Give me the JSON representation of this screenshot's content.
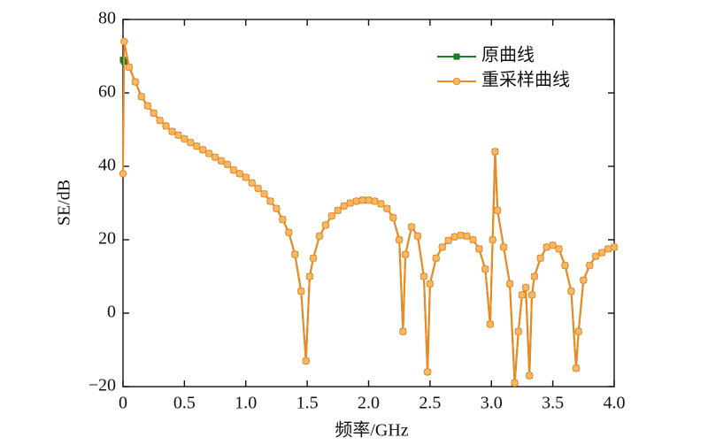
{
  "chart_data": {
    "type": "line",
    "xlabel": "频率/GHz",
    "ylabel": "SE/dB",
    "x": [
      0,
      0.01,
      0.05,
      0.1,
      0.15,
      0.2,
      0.25,
      0.3,
      0.35,
      0.4,
      0.45,
      0.5,
      0.55,
      0.6,
      0.65,
      0.7,
      0.75,
      0.8,
      0.85,
      0.9,
      0.95,
      1.0,
      1.05,
      1.1,
      1.15,
      1.2,
      1.25,
      1.3,
      1.35,
      1.4,
      1.45,
      1.49,
      1.52,
      1.55,
      1.6,
      1.65,
      1.7,
      1.75,
      1.8,
      1.85,
      1.9,
      1.95,
      2.0,
      2.05,
      2.1,
      2.15,
      2.2,
      2.25,
      2.28,
      2.3,
      2.35,
      2.4,
      2.45,
      2.48,
      2.5,
      2.55,
      2.6,
      2.65,
      2.7,
      2.75,
      2.8,
      2.85,
      2.9,
      2.95,
      2.99,
      3.01,
      3.03,
      3.05,
      3.1,
      3.15,
      3.19,
      3.22,
      3.25,
      3.28,
      3.31,
      3.33,
      3.35,
      3.4,
      3.45,
      3.5,
      3.55,
      3.6,
      3.65,
      3.69,
      3.71,
      3.75,
      3.8,
      3.85,
      3.9,
      3.95,
      4.0
    ],
    "series": [
      {
        "name": "原曲线",
        "color": "#1e7b2a",
        "marker": "square",
        "values": [
          69,
          68.5,
          67,
          63,
          59,
          56.5,
          54.5,
          52.5,
          51,
          49.5,
          48.5,
          47.5,
          46.5,
          45.5,
          44.5,
          43.5,
          42.5,
          41.5,
          40.5,
          39,
          38,
          37,
          35.5,
          34,
          32.5,
          30.5,
          28.5,
          25.5,
          22,
          16,
          6,
          -13,
          10,
          15,
          21,
          24,
          26.5,
          28,
          29.2,
          30,
          30.5,
          30.8,
          30.8,
          30.5,
          29.8,
          28.5,
          26,
          20,
          -5,
          16,
          23.5,
          21,
          10,
          -16,
          8,
          15,
          18,
          19.8,
          20.8,
          21.2,
          21,
          20,
          17.5,
          12,
          -3,
          20,
          44,
          28,
          18,
          8,
          -19,
          -5,
          5,
          7,
          -17,
          5,
          10,
          15,
          18,
          18.5,
          17.5,
          13,
          6,
          -15,
          -5,
          9,
          13,
          15.5,
          16.5,
          17.5,
          18
        ]
      },
      {
        "name": "重采样曲线",
        "color": "#f08a1e",
        "marker": "circle",
        "values": [
          38,
          74,
          67,
          63,
          59,
          56.5,
          54.5,
          52.5,
          51,
          49.5,
          48.5,
          47.5,
          46.5,
          45.5,
          44.5,
          43.5,
          42.5,
          41.5,
          40.5,
          39,
          38,
          37,
          35.5,
          34,
          32.5,
          30.5,
          28.5,
          25.5,
          22,
          16,
          6,
          -13,
          10,
          15,
          21,
          24,
          26.5,
          28,
          29.2,
          30,
          30.5,
          30.8,
          30.8,
          30.5,
          29.8,
          28.5,
          26,
          20,
          -5,
          16,
          23.5,
          21,
          10,
          -16,
          8,
          15,
          18,
          19.8,
          20.8,
          21.2,
          21,
          20,
          17.5,
          12,
          -3,
          20,
          44,
          28,
          18,
          8,
          -19,
          -5,
          5,
          7,
          -17,
          5,
          10,
          15,
          18,
          18.5,
          17.5,
          13,
          6,
          -15,
          -5,
          9,
          13,
          15.5,
          16.5,
          17.5,
          18
        ]
      }
    ],
    "xlim": [
      0,
      4
    ],
    "xticks": [
      0,
      0.5,
      {
        "value": 1,
        "label": "1.0"
      },
      1.5,
      {
        "value": 2,
        "label": "2.0"
      },
      2.5,
      {
        "value": 3,
        "label": "3.0"
      },
      3.5,
      {
        "value": 4,
        "label": "4.0"
      }
    ],
    "ylim": [
      -20,
      80
    ],
    "yticks": [
      {
        "value": -20,
        "label": "−20"
      },
      0,
      20,
      40,
      60,
      80
    ],
    "legend": "upper right",
    "grid": false
  }
}
